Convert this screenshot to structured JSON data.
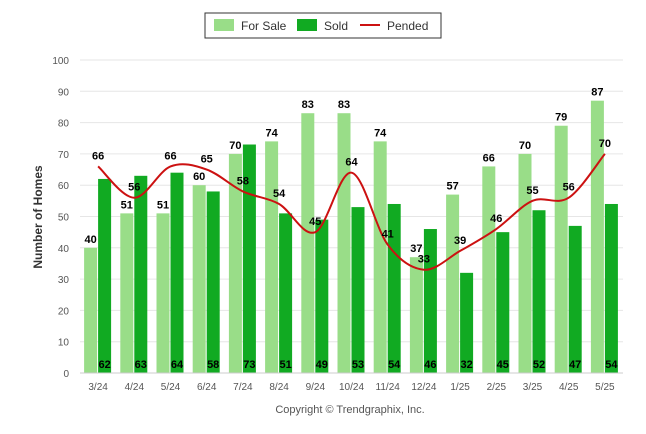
{
  "chart_data": {
    "type": "bar",
    "categories": [
      "3/24",
      "4/24",
      "5/24",
      "6/24",
      "7/24",
      "8/24",
      "9/24",
      "10/24",
      "11/24",
      "12/24",
      "1/25",
      "2/25",
      "3/25",
      "4/25",
      "5/25"
    ],
    "series": [
      {
        "name": "For Sale",
        "type": "bar",
        "color": "#99dd88",
        "values": [
          40,
          51,
          51,
          60,
          70,
          74,
          83,
          83,
          74,
          37,
          57,
          66,
          70,
          79,
          87
        ]
      },
      {
        "name": "Sold",
        "type": "bar",
        "color": "#11aa22",
        "values": [
          62,
          63,
          64,
          58,
          73,
          51,
          49,
          53,
          54,
          46,
          32,
          45,
          52,
          47,
          54
        ]
      },
      {
        "name": "Pended",
        "type": "line",
        "color": "#cc1111",
        "values": [
          66,
          56,
          66,
          65,
          58,
          54,
          45,
          64,
          41,
          33,
          39,
          46,
          55,
          56,
          70
        ]
      }
    ],
    "ylabel": "Number of Homes",
    "xlabel": "",
    "ylim": [
      0,
      100
    ],
    "yticks": [
      0,
      10,
      20,
      30,
      40,
      50,
      60,
      70,
      80,
      90,
      100
    ],
    "grid": true,
    "legend_position": "top-center"
  },
  "credit": "Copyright © Trendgraphix, Inc."
}
